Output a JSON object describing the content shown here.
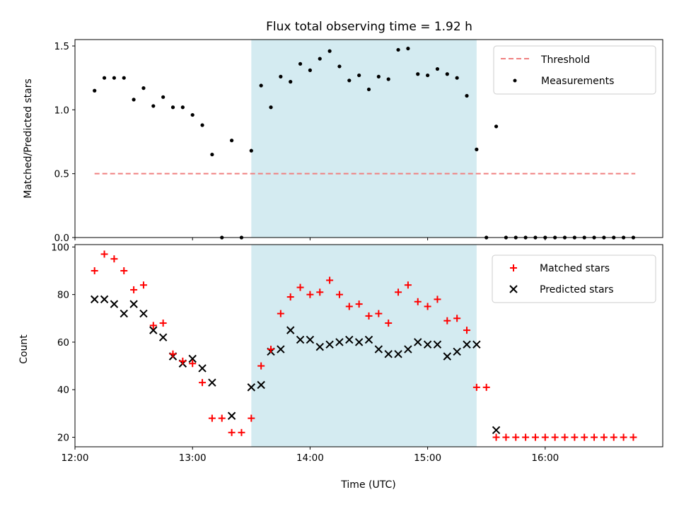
{
  "chart_data": [
    {
      "type": "scatter",
      "title": "Flux total observing time = 1.92 h",
      "xlabel": "",
      "ylabel": "Matched/Predicted stars",
      "xlim": [
        "12:00",
        "17:00"
      ],
      "ylim": [
        0,
        1.55
      ],
      "xticks": [
        "12:00",
        "13:00",
        "14:00",
        "15:00",
        "16:00"
      ],
      "yticks": [
        "0.0",
        "0.5",
        "1.0",
        "1.5"
      ],
      "legend_position": "upper right",
      "highlight_span": {
        "start": "13:30",
        "end": "15:25",
        "color": "#d4ebf1"
      },
      "threshold": {
        "name": "Threshold",
        "value": 0.5,
        "start": "12:10",
        "end": "16:46",
        "color": "#f08080",
        "style": "dashed"
      },
      "series": [
        {
          "name": "Measurements",
          "marker": "dot",
          "color": "#000000",
          "points": [
            [
              "12:10",
              1.15
            ],
            [
              "12:15",
              1.25
            ],
            [
              "12:20",
              1.25
            ],
            [
              "12:25",
              1.25
            ],
            [
              "12:30",
              1.08
            ],
            [
              "12:35",
              1.17
            ],
            [
              "12:40",
              1.03
            ],
            [
              "12:45",
              1.1
            ],
            [
              "12:50",
              1.02
            ],
            [
              "12:55",
              1.02
            ],
            [
              "13:00",
              0.96
            ],
            [
              "13:05",
              0.88
            ],
            [
              "13:10",
              0.65
            ],
            [
              "13:15",
              0.0
            ],
            [
              "13:20",
              0.76
            ],
            [
              "13:25",
              0.0
            ],
            [
              "13:30",
              0.68
            ],
            [
              "13:35",
              1.19
            ],
            [
              "13:40",
              1.02
            ],
            [
              "13:45",
              1.26
            ],
            [
              "13:50",
              1.22
            ],
            [
              "13:55",
              1.36
            ],
            [
              "14:00",
              1.31
            ],
            [
              "14:05",
              1.4
            ],
            [
              "14:10",
              1.46
            ],
            [
              "14:15",
              1.34
            ],
            [
              "14:20",
              1.23
            ],
            [
              "14:25",
              1.27
            ],
            [
              "14:30",
              1.16
            ],
            [
              "14:35",
              1.26
            ],
            [
              "14:40",
              1.24
            ],
            [
              "14:45",
              1.47
            ],
            [
              "14:50",
              1.48
            ],
            [
              "14:55",
              1.28
            ],
            [
              "15:00",
              1.27
            ],
            [
              "15:05",
              1.32
            ],
            [
              "15:10",
              1.28
            ],
            [
              "15:15",
              1.25
            ],
            [
              "15:20",
              1.11
            ],
            [
              "15:25",
              0.69
            ],
            [
              "15:30",
              0.0
            ],
            [
              "15:35",
              0.87
            ],
            [
              "15:40",
              0.0
            ],
            [
              "15:45",
              0.0
            ],
            [
              "15:50",
              0.0
            ],
            [
              "15:55",
              0.0
            ],
            [
              "16:00",
              0.0
            ],
            [
              "16:05",
              0.0
            ],
            [
              "16:10",
              0.0
            ],
            [
              "16:15",
              0.0
            ],
            [
              "16:20",
              0.0
            ],
            [
              "16:25",
              0.0
            ],
            [
              "16:30",
              0.0
            ],
            [
              "16:35",
              0.0
            ],
            [
              "16:40",
              0.0
            ],
            [
              "16:45",
              0.0
            ]
          ]
        }
      ]
    },
    {
      "type": "scatter",
      "title": "",
      "xlabel": "Time (UTC)",
      "ylabel": "Count",
      "xlim": [
        "12:00",
        "17:00"
      ],
      "ylim": [
        16,
        101
      ],
      "xticks": [
        "12:00",
        "13:00",
        "14:00",
        "15:00",
        "16:00"
      ],
      "yticks": [
        "20",
        "40",
        "60",
        "80",
        "100"
      ],
      "legend_position": "upper right",
      "highlight_span": {
        "start": "13:30",
        "end": "15:25",
        "color": "#d4ebf1"
      },
      "series": [
        {
          "name": "Matched stars",
          "marker": "plus",
          "color": "#ff0000",
          "points": [
            [
              "12:10",
              90
            ],
            [
              "12:15",
              97
            ],
            [
              "12:20",
              95
            ],
            [
              "12:25",
              90
            ],
            [
              "12:30",
              82
            ],
            [
              "12:35",
              84
            ],
            [
              "12:40",
              67
            ],
            [
              "12:45",
              68
            ],
            [
              "12:50",
              55
            ],
            [
              "12:55",
              52
            ],
            [
              "13:00",
              51
            ],
            [
              "13:05",
              43
            ],
            [
              "13:10",
              28
            ],
            [
              "13:15",
              28
            ],
            [
              "13:20",
              22
            ],
            [
              "13:25",
              22
            ],
            [
              "13:30",
              28
            ],
            [
              "13:35",
              50
            ],
            [
              "13:40",
              57
            ],
            [
              "13:45",
              72
            ],
            [
              "13:50",
              79
            ],
            [
              "13:55",
              83
            ],
            [
              "14:00",
              80
            ],
            [
              "14:05",
              81
            ],
            [
              "14:10",
              86
            ],
            [
              "14:15",
              80
            ],
            [
              "14:20",
              75
            ],
            [
              "14:25",
              76
            ],
            [
              "14:30",
              71
            ],
            [
              "14:35",
              72
            ],
            [
              "14:40",
              68
            ],
            [
              "14:45",
              81
            ],
            [
              "14:50",
              84
            ],
            [
              "14:55",
              77
            ],
            [
              "15:00",
              75
            ],
            [
              "15:05",
              78
            ],
            [
              "15:10",
              69
            ],
            [
              "15:15",
              70
            ],
            [
              "15:20",
              65
            ],
            [
              "15:25",
              41
            ],
            [
              "15:30",
              41
            ],
            [
              "15:35",
              20
            ],
            [
              "15:40",
              20
            ],
            [
              "15:45",
              20
            ],
            [
              "15:50",
              20
            ],
            [
              "15:55",
              20
            ],
            [
              "16:00",
              20
            ],
            [
              "16:05",
              20
            ],
            [
              "16:10",
              20
            ],
            [
              "16:15",
              20
            ],
            [
              "16:20",
              20
            ],
            [
              "16:25",
              20
            ],
            [
              "16:30",
              20
            ],
            [
              "16:35",
              20
            ],
            [
              "16:40",
              20
            ],
            [
              "16:45",
              20
            ]
          ]
        },
        {
          "name": "Predicted stars",
          "marker": "x",
          "color": "#000000",
          "points": [
            [
              "12:10",
              78
            ],
            [
              "12:15",
              78
            ],
            [
              "12:20",
              76
            ],
            [
              "12:25",
              72
            ],
            [
              "12:30",
              76
            ],
            [
              "12:35",
              72
            ],
            [
              "12:40",
              65
            ],
            [
              "12:45",
              62
            ],
            [
              "12:50",
              54
            ],
            [
              "12:55",
              51
            ],
            [
              "13:00",
              53
            ],
            [
              "13:05",
              49
            ],
            [
              "13:10",
              43
            ],
            [
              "13:20",
              29
            ],
            [
              "13:30",
              41
            ],
            [
              "13:35",
              42
            ],
            [
              "13:40",
              56
            ],
            [
              "13:45",
              57
            ],
            [
              "13:50",
              65
            ],
            [
              "13:55",
              61
            ],
            [
              "14:00",
              61
            ],
            [
              "14:05",
              58
            ],
            [
              "14:10",
              59
            ],
            [
              "14:15",
              60
            ],
            [
              "14:20",
              61
            ],
            [
              "14:25",
              60
            ],
            [
              "14:30",
              61
            ],
            [
              "14:35",
              57
            ],
            [
              "14:40",
              55
            ],
            [
              "14:45",
              55
            ],
            [
              "14:50",
              57
            ],
            [
              "14:55",
              60
            ],
            [
              "15:00",
              59
            ],
            [
              "15:05",
              59
            ],
            [
              "15:10",
              54
            ],
            [
              "15:15",
              56
            ],
            [
              "15:20",
              59
            ],
            [
              "15:25",
              59
            ],
            [
              "15:35",
              23
            ]
          ]
        }
      ]
    }
  ]
}
